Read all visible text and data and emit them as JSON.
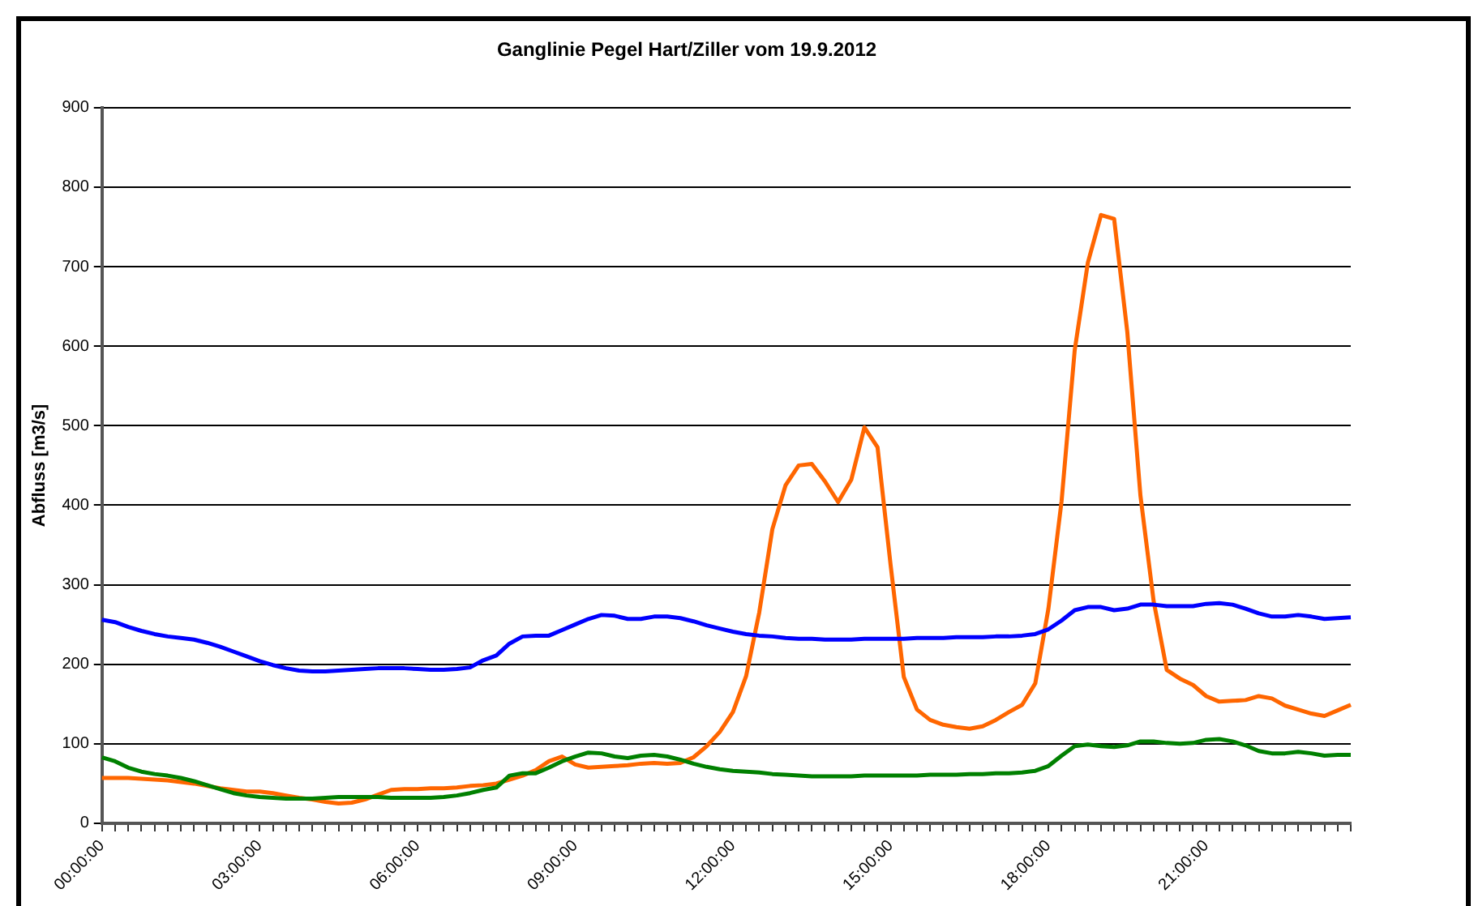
{
  "chart_data": {
    "type": "line",
    "title": "Ganglinie Pegel Hart/Ziller vom 19.9.2012",
    "ylabel": "Abfluss [m3/s]",
    "categories": [
      "00:00:00",
      null,
      null,
      null,
      null,
      null,
      null,
      null,
      null,
      null,
      null,
      null,
      "03:00:00",
      null,
      null,
      null,
      null,
      null,
      null,
      null,
      null,
      null,
      null,
      null,
      "06:00:00",
      null,
      null,
      null,
      null,
      null,
      null,
      null,
      null,
      null,
      null,
      null,
      "09:00:00",
      null,
      null,
      null,
      null,
      null,
      null,
      null,
      null,
      null,
      null,
      null,
      "12:00:00",
      null,
      null,
      null,
      null,
      null,
      null,
      null,
      null,
      null,
      null,
      null,
      "15:00:00",
      null,
      null,
      null,
      null,
      null,
      null,
      null,
      null,
      null,
      null,
      null,
      "18:00:00",
      null,
      null,
      null,
      null,
      null,
      null,
      null,
      null,
      null,
      null,
      null,
      "21:00:00",
      null,
      null,
      null,
      null,
      null,
      null,
      null,
      null,
      null,
      null,
      null
    ],
    "series": [
      {
        "color": "#0000ff",
        "values": [
          256,
          253,
          247,
          242,
          238,
          235,
          233,
          231,
          227,
          222,
          216,
          210,
          204,
          199,
          195,
          192,
          191,
          191,
          192,
          193,
          194,
          195,
          195,
          195,
          194,
          193,
          193,
          194,
          196,
          205,
          211,
          226,
          235,
          236,
          236,
          243,
          250,
          257,
          262,
          261,
          257,
          257,
          260,
          260,
          258,
          254,
          249,
          245,
          241,
          238,
          236,
          235,
          233,
          232,
          232,
          231,
          231,
          231,
          232,
          232,
          232,
          232,
          233,
          233,
          233,
          234,
          234,
          234,
          235,
          235,
          236,
          238,
          244,
          255,
          268,
          272,
          272,
          268,
          270,
          275,
          275,
          273,
          273,
          273,
          276,
          277,
          275,
          270,
          264,
          260,
          260,
          262,
          260,
          257,
          258,
          259
        ]
      },
      {
        "color": "#008000",
        "values": [
          83,
          78,
          70,
          65,
          62,
          60,
          57,
          53,
          48,
          43,
          38,
          35,
          33,
          32,
          31,
          31,
          31,
          32,
          33,
          33,
          33,
          33,
          32,
          32,
          32,
          32,
          33,
          35,
          38,
          42,
          45,
          60,
          63,
          63,
          70,
          78,
          84,
          89,
          88,
          84,
          82,
          85,
          86,
          84,
          80,
          75,
          71,
          68,
          66,
          65,
          64,
          62,
          61,
          60,
          59,
          59,
          59,
          59,
          60,
          60,
          60,
          60,
          60,
          61,
          61,
          61,
          62,
          62,
          63,
          63,
          64,
          66,
          72,
          85,
          97,
          99,
          97,
          96,
          98,
          103,
          103,
          101,
          100,
          101,
          105,
          106,
          103,
          98,
          91,
          88,
          88,
          90,
          88,
          85,
          86,
          86
        ]
      },
      {
        "color": "#ff6600",
        "values": [
          57,
          57,
          57,
          56,
          55,
          54,
          52,
          50,
          47,
          44,
          42,
          40,
          40,
          38,
          35,
          32,
          30,
          27,
          25,
          26,
          30,
          36,
          42,
          43,
          43,
          44,
          44,
          45,
          47,
          48,
          50,
          55,
          60,
          67,
          78,
          84,
          74,
          70,
          71,
          72,
          73,
          75,
          76,
          75,
          76,
          83,
          97,
          115,
          140,
          185,
          265,
          370,
          425,
          450,
          452,
          430,
          404,
          432,
          498,
          473,
          324,
          184,
          143,
          130,
          124,
          121,
          119,
          122,
          130,
          140,
          149,
          176,
          270,
          405,
          595,
          705,
          765,
          760,
          618,
          412,
          280,
          193,
          182,
          174,
          160,
          153,
          154,
          155,
          160,
          157,
          148,
          143,
          138,
          135,
          142,
          149
        ]
      }
    ],
    "ylim": [
      0,
      900
    ],
    "yticks": [
      0,
      100,
      200,
      300,
      400,
      500,
      600,
      700,
      800,
      900
    ],
    "grid": "y",
    "legend": false,
    "marker": "none",
    "line_style": "solid"
  }
}
